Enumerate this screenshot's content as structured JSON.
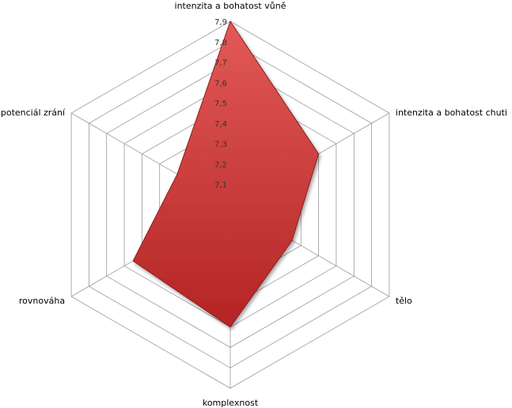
{
  "chart_data": {
    "type": "radar",
    "title": "",
    "categories": [
      "intenzita a bohatost vůně",
      "intenzita a bohatost chuti",
      "tělo",
      "komplexnost",
      "rovnováha",
      "potenciál zrání"
    ],
    "series": [
      {
        "values": [
          7.9,
          7.5,
          7.35,
          7.6,
          7.55,
          7.3
        ],
        "color": "#d64040"
      }
    ],
    "rlim": [
      7.0,
      7.9
    ],
    "ticks": [
      "7,1",
      "7,2",
      "7,3",
      "7,4",
      "7,5",
      "7,6",
      "7,7",
      "7,8",
      "7,9"
    ],
    "tick_values": [
      7.1,
      7.2,
      7.3,
      7.4,
      7.5,
      7.6,
      7.7,
      7.8,
      7.9
    ],
    "grid": true,
    "legend": "none"
  }
}
